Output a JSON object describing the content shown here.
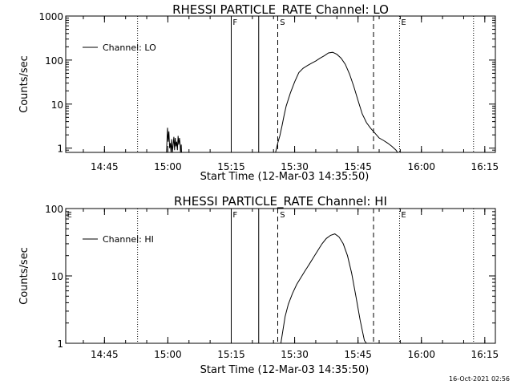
{
  "chart_data": [
    {
      "type": "line",
      "title": "RHESSI PARTICLE_RATE Channel: LO",
      "xlabel": "Start Time (12-Mar-03 14:35:50)",
      "ylabel": "Counts/sec",
      "yscale": "log",
      "ylim": [
        0.8,
        1000
      ],
      "yticks": [
        "1",
        "10",
        "100",
        "1000"
      ],
      "xlim": [
        "14:35:50",
        "16:17:30"
      ],
      "xticks": [
        "14:45",
        "15:00",
        "15:15",
        "15:30",
        "15:45",
        "16:00",
        "16:15"
      ],
      "grid": false,
      "legend_position": "top-left",
      "series": [
        {
          "name": "Channel: LO",
          "x": [
            "14:59:40",
            "14:59:55",
            "15:00:05",
            "15:00:15",
            "15:00:25",
            "15:00:35",
            "15:00:45",
            "15:00:55",
            "15:01:05",
            "15:01:15",
            "15:01:25",
            "15:01:35",
            "15:01:45",
            "15:01:55",
            "15:02:05",
            "15:02:15",
            "15:02:25",
            "15:02:35",
            "15:02:45",
            "15:02:55",
            "15:03:00",
            "15:03:00",
            "15:03:10",
            "15:03:15",
            "15:25:30",
            "15:26:00",
            "15:26:30",
            "15:27:00",
            "15:27:30",
            "15:28:00",
            "15:29:00",
            "15:30:00",
            "15:31:00",
            "15:32:00",
            "15:33:00",
            "15:34:00",
            "15:35:00",
            "15:36:00",
            "15:37:00",
            "15:38:00",
            "15:39:00",
            "15:40:00",
            "15:41:00",
            "15:42:00",
            "15:43:00",
            "15:44:00",
            "15:45:00",
            "15:46:00",
            "15:47:00",
            "15:48:00",
            "15:49:00",
            "15:50:00",
            "15:51:00",
            "15:52:00",
            "15:53:00",
            "15:54:00",
            "15:54:20"
          ],
          "values": [
            0.8,
            2.9,
            1.4,
            2.4,
            1.0,
            1.3,
            0.8,
            1.6,
            0.8,
            1.2,
            1.8,
            0.9,
            1.7,
            1.1,
            1.4,
            0.9,
            1.9,
            1.2,
            1.7,
            1.2,
            0.8,
            0.8,
            1.2,
            0.8,
            0.8,
            1.3,
            1.9,
            3.2,
            5.5,
            9,
            18,
            32,
            52,
            65,
            75,
            85,
            95,
            110,
            125,
            145,
            150,
            135,
            110,
            80,
            48,
            25,
            12,
            6,
            3.8,
            2.8,
            2.2,
            1.7,
            1.5,
            1.3,
            1.1,
            0.9,
            0.8
          ]
        }
      ],
      "annotations": [
        "F",
        "S",
        "E"
      ]
    },
    {
      "type": "line",
      "title": "RHESSI PARTICLE_RATE Channel: HI",
      "xlabel": "Start Time (12-Mar-03 14:35:50)",
      "ylabel": "Counts/sec",
      "yscale": "log",
      "ylim": [
        1,
        100
      ],
      "yticks": [
        "1",
        "10",
        "100"
      ],
      "xlim": [
        "14:35:50",
        "16:17:30"
      ],
      "xticks": [
        "14:45",
        "15:00",
        "15:15",
        "15:30",
        "15:45",
        "16:00",
        "16:15"
      ],
      "grid": false,
      "legend_position": "top-left",
      "series": [
        {
          "name": "Channel: HI",
          "x": [
            "15:26:45",
            "15:27:15",
            "15:27:45",
            "15:28:30",
            "15:29:30",
            "15:30:30",
            "15:31:30",
            "15:32:30",
            "15:33:30",
            "15:34:30",
            "15:35:30",
            "15:36:30",
            "15:37:30",
            "15:38:30",
            "15:39:30",
            "15:40:30",
            "15:41:30",
            "15:42:30",
            "15:43:30",
            "15:44:30",
            "15:45:30",
            "15:46:30",
            "15:47:00"
          ],
          "values": [
            1.0,
            1.6,
            2.5,
            3.8,
            5.5,
            7.5,
            9.5,
            12,
            15,
            19,
            24,
            30,
            36,
            40,
            42,
            38,
            30,
            20,
            11,
            5,
            2.2,
            1.1,
            1.0
          ]
        }
      ],
      "annotations": [
        "E",
        "F",
        "S",
        "E"
      ]
    }
  ],
  "footer": {
    "timestamp": "16-Oct-2021 02:56"
  }
}
